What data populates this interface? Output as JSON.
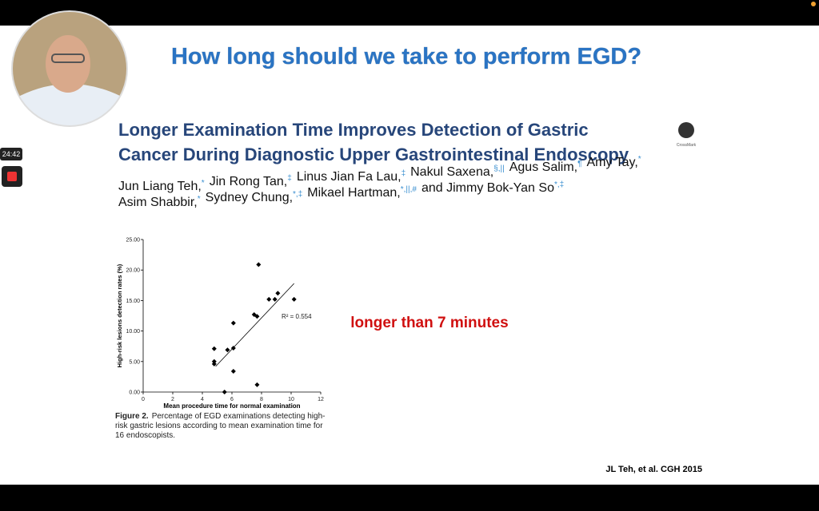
{
  "timer": "24:42",
  "slide": {
    "title": "How long should we take to perform EGD?",
    "article_title": [
      "Longer Examination Time Improves Detection of Gastric",
      "Cancer During Diagnostic Upper Gastrointestinal Endoscopy"
    ],
    "crossmark": "CrossMark",
    "authors": [
      [
        {
          "name": "Jun Liang Teh,",
          "sup": "*"
        },
        {
          "name": "Jin Rong Tan,",
          "sup": "‡"
        },
        {
          "name": "Linus Jian Fa Lau,",
          "sup": "‡"
        },
        {
          "name": "Nakul Saxena,",
          "sup": "§,||"
        },
        {
          "name": "Agus Salim,",
          "sup": "¶"
        },
        {
          "name": "Amy Tay,",
          "sup": "*"
        }
      ],
      [
        {
          "name": "Asim Shabbir,",
          "sup": "*"
        },
        {
          "name": "Sydney Chung,",
          "sup": "*,‡"
        },
        {
          "name": "Mikael Hartman,",
          "sup": "*,||,#"
        },
        {
          "name": "and Jimmy Bok-Yan So",
          "sup": "*,‡"
        }
      ]
    ],
    "callout": "longer than 7 minutes",
    "caption_label": "Figure 2.",
    "caption_lines": [
      "Percentage of EGD examinations detecting high-",
      "risk gastric lesions according to mean examination time for",
      "16 endoscopists."
    ],
    "citation": "JL Teh, et al. CGH 2015"
  },
  "chart_data": {
    "type": "scatter",
    "x_label": "Mean procedure time for normal examination",
    "y_label": "High-risk lesions detection rates (%)",
    "x": [
      4.8,
      4.8,
      4.8,
      5.5,
      5.7,
      6.1,
      6.1,
      6.1,
      7.7,
      7.5,
      7.7,
      7.8,
      8.5,
      8.9,
      9.1,
      10.2
    ],
    "values": [
      5.0,
      4.6,
      7.1,
      0.0,
      6.9,
      7.2,
      11.3,
      3.4,
      1.2,
      12.7,
      12.4,
      20.9,
      15.2,
      15.2,
      16.2,
      15.2
    ],
    "color": "#000000",
    "trendline": {
      "x": [
        4.9,
        10.2
      ],
      "values": [
        4.2,
        17.8
      ]
    },
    "annotation": "R² = 0.554",
    "xlim": [
      0,
      12
    ],
    "xticks": [
      0,
      2,
      4,
      6,
      8,
      10,
      12
    ],
    "ylim": [
      0,
      25
    ],
    "yticks": [
      {
        "value": 0,
        "label": "0.00"
      },
      {
        "value": 5,
        "label": "5.00"
      },
      {
        "value": 10,
        "label": "10.00"
      },
      {
        "value": 15,
        "label": "15.00"
      },
      {
        "value": 20,
        "label": "20.00"
      },
      {
        "value": 25,
        "label": "25.00"
      }
    ]
  }
}
